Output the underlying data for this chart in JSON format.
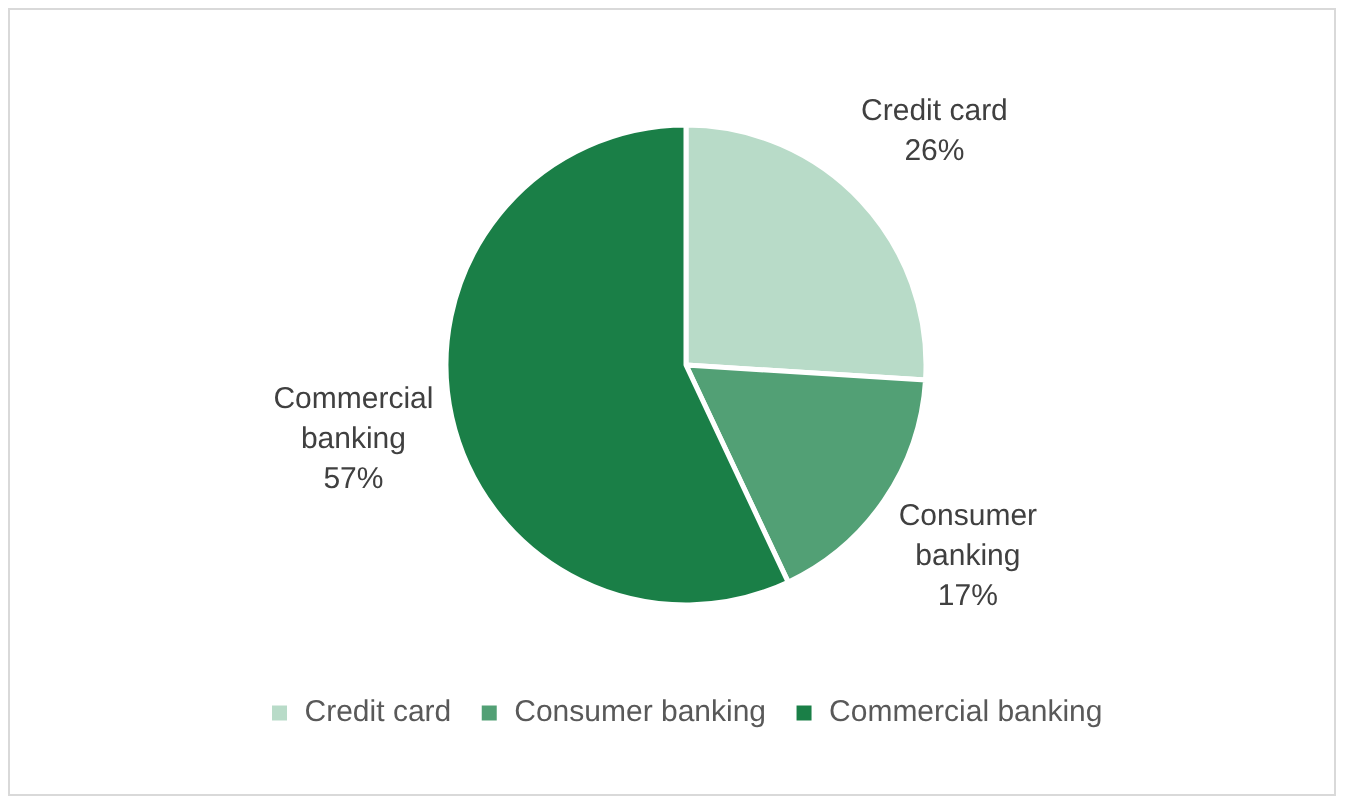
{
  "chart_data": {
    "type": "pie",
    "categories": [
      "Credit card",
      "Consumer banking",
      "Commercial banking"
    ],
    "values": [
      26,
      17,
      57
    ],
    "colors": [
      "#b8dbc8",
      "#52a075",
      "#1a7f47"
    ],
    "value_labels": [
      "26%",
      "17%",
      "57%"
    ],
    "legend": "bottom"
  }
}
